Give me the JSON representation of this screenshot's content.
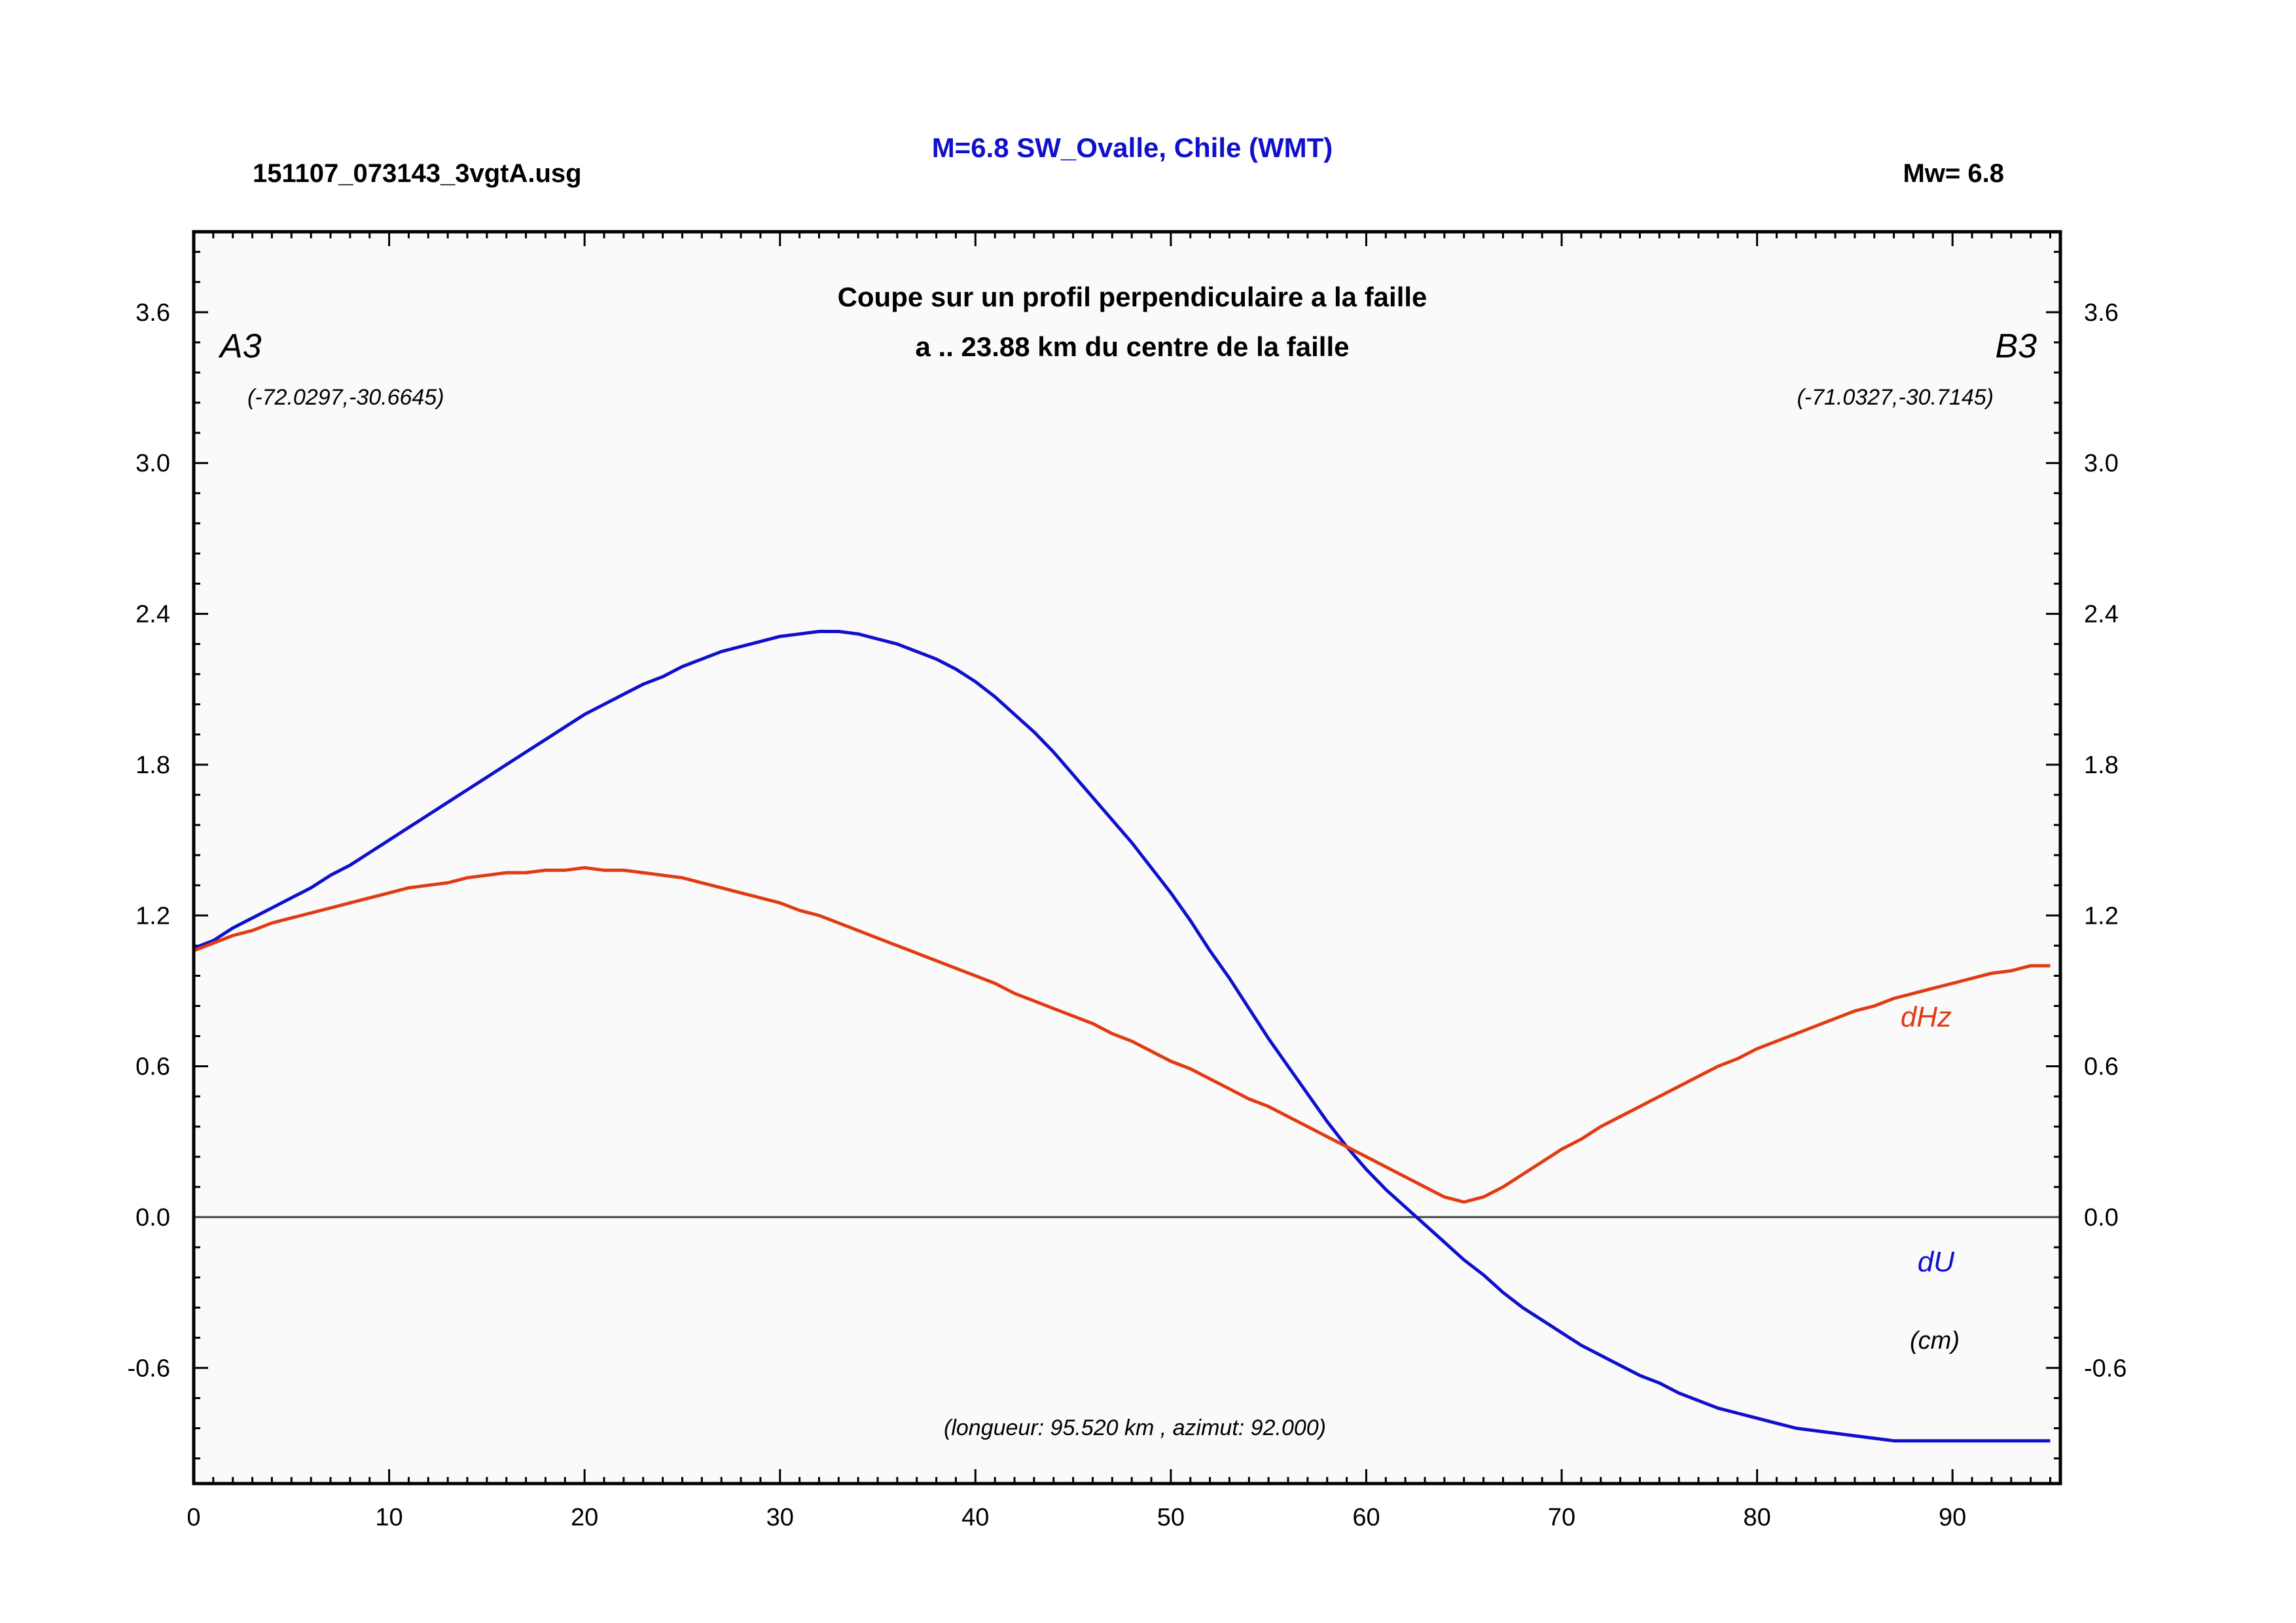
{
  "header": {
    "file_label": "151107_073143_3vgtA.usg",
    "event_title": "M=6.8 SW_Ovalle, Chile (WMT)",
    "magnitude_label": "Mw= 6.8"
  },
  "chart_data": {
    "type": "line",
    "title_line1": "Coupe sur un profil perpendiculaire a la faille",
    "title_line2": "a .. 23.88 km du centre de la faille",
    "point_a": {
      "name": "A3",
      "coords": "(-72.0297,-30.6645)"
    },
    "point_b": {
      "name": "B3",
      "coords": "(-71.0327,-30.7145)"
    },
    "footer_note": "(longueur: 95.520 km , azimut: 92.000)",
    "unit_label": "(cm)",
    "xlim": [
      0,
      95.52
    ],
    "ylim": [
      -1.06,
      3.92
    ],
    "xticks": [
      0,
      10,
      20,
      30,
      40,
      50,
      60,
      70,
      80,
      90
    ],
    "xtick_labels": [
      "0",
      "10",
      "20",
      "30",
      "40",
      "50",
      "60",
      "70",
      "80",
      "90"
    ],
    "yticks": [
      -0.6,
      0.0,
      0.6,
      1.2,
      1.8,
      2.4,
      3.0,
      3.6
    ],
    "ytick_labels": [
      "-0.6",
      "0.0",
      "0.6",
      "1.2",
      "1.8",
      "2.4",
      "3.0",
      "3.6"
    ],
    "zero_line": true,
    "series": [
      {
        "name": "dU",
        "color": "#1010cc",
        "x": [
          0,
          1,
          2,
          3,
          4,
          5,
          6,
          7,
          8,
          9,
          10,
          11,
          12,
          13,
          14,
          15,
          16,
          17,
          18,
          19,
          20,
          21,
          22,
          23,
          24,
          25,
          26,
          27,
          28,
          29,
          30,
          31,
          32,
          33,
          34,
          35,
          36,
          37,
          38,
          39,
          40,
          41,
          42,
          43,
          44,
          45,
          46,
          47,
          48,
          49,
          50,
          51,
          52,
          53,
          54,
          55,
          56,
          57,
          58,
          59,
          60,
          61,
          62,
          63,
          64,
          65,
          66,
          67,
          68,
          69,
          70,
          71,
          72,
          73,
          74,
          75,
          76,
          77,
          78,
          79,
          80,
          81,
          82,
          83,
          84,
          85,
          86,
          87,
          88,
          89,
          90,
          91,
          92,
          93,
          94,
          95
        ],
        "y": [
          1.07,
          1.1,
          1.15,
          1.19,
          1.23,
          1.27,
          1.31,
          1.36,
          1.4,
          1.45,
          1.5,
          1.55,
          1.6,
          1.65,
          1.7,
          1.75,
          1.8,
          1.85,
          1.9,
          1.95,
          2.0,
          2.04,
          2.08,
          2.12,
          2.15,
          2.19,
          2.22,
          2.25,
          2.27,
          2.29,
          2.31,
          2.32,
          2.33,
          2.33,
          2.32,
          2.3,
          2.28,
          2.25,
          2.22,
          2.18,
          2.13,
          2.07,
          2.0,
          1.93,
          1.85,
          1.76,
          1.67,
          1.58,
          1.49,
          1.39,
          1.29,
          1.18,
          1.06,
          0.95,
          0.83,
          0.71,
          0.6,
          0.49,
          0.38,
          0.28,
          0.19,
          0.11,
          0.04,
          -0.03,
          -0.1,
          -0.17,
          -0.23,
          -0.3,
          -0.36,
          -0.41,
          -0.46,
          -0.51,
          -0.55,
          -0.59,
          -0.63,
          -0.66,
          -0.7,
          -0.73,
          -0.76,
          -0.78,
          -0.8,
          -0.82,
          -0.84,
          -0.85,
          -0.86,
          -0.87,
          -0.88,
          -0.89,
          -0.89,
          -0.89,
          -0.89,
          -0.89,
          -0.89,
          -0.89,
          -0.89,
          -0.89
        ]
      },
      {
        "name": "dHz",
        "color": "#e03c14",
        "x": [
          0,
          1,
          2,
          3,
          4,
          5,
          6,
          7,
          8,
          9,
          10,
          11,
          12,
          13,
          14,
          15,
          16,
          17,
          18,
          19,
          20,
          21,
          22,
          23,
          24,
          25,
          26,
          27,
          28,
          29,
          30,
          31,
          32,
          33,
          34,
          35,
          36,
          37,
          38,
          39,
          40,
          41,
          42,
          43,
          44,
          45,
          46,
          47,
          48,
          49,
          50,
          51,
          52,
          53,
          54,
          55,
          56,
          57,
          58,
          59,
          60,
          61,
          62,
          63,
          64,
          65,
          66,
          67,
          68,
          69,
          70,
          71,
          72,
          73,
          74,
          75,
          76,
          77,
          78,
          79,
          80,
          81,
          82,
          83,
          84,
          85,
          86,
          87,
          88,
          89,
          90,
          91,
          92,
          93,
          94,
          95
        ],
        "y": [
          1.06,
          1.09,
          1.12,
          1.14,
          1.17,
          1.19,
          1.21,
          1.23,
          1.25,
          1.27,
          1.29,
          1.31,
          1.32,
          1.33,
          1.35,
          1.36,
          1.37,
          1.37,
          1.38,
          1.38,
          1.39,
          1.38,
          1.38,
          1.37,
          1.36,
          1.35,
          1.33,
          1.31,
          1.29,
          1.27,
          1.25,
          1.22,
          1.2,
          1.17,
          1.14,
          1.11,
          1.08,
          1.05,
          1.02,
          0.99,
          0.96,
          0.93,
          0.89,
          0.86,
          0.83,
          0.8,
          0.77,
          0.73,
          0.7,
          0.66,
          0.62,
          0.59,
          0.55,
          0.51,
          0.47,
          0.44,
          0.4,
          0.36,
          0.32,
          0.28,
          0.24,
          0.2,
          0.16,
          0.12,
          0.08,
          0.06,
          0.08,
          0.12,
          0.17,
          0.22,
          0.27,
          0.31,
          0.36,
          0.4,
          0.44,
          0.48,
          0.52,
          0.56,
          0.6,
          0.63,
          0.67,
          0.7,
          0.73,
          0.76,
          0.79,
          0.82,
          0.84,
          0.87,
          0.89,
          0.91,
          0.93,
          0.95,
          0.97,
          0.98,
          1.0,
          1.0
        ]
      }
    ]
  }
}
